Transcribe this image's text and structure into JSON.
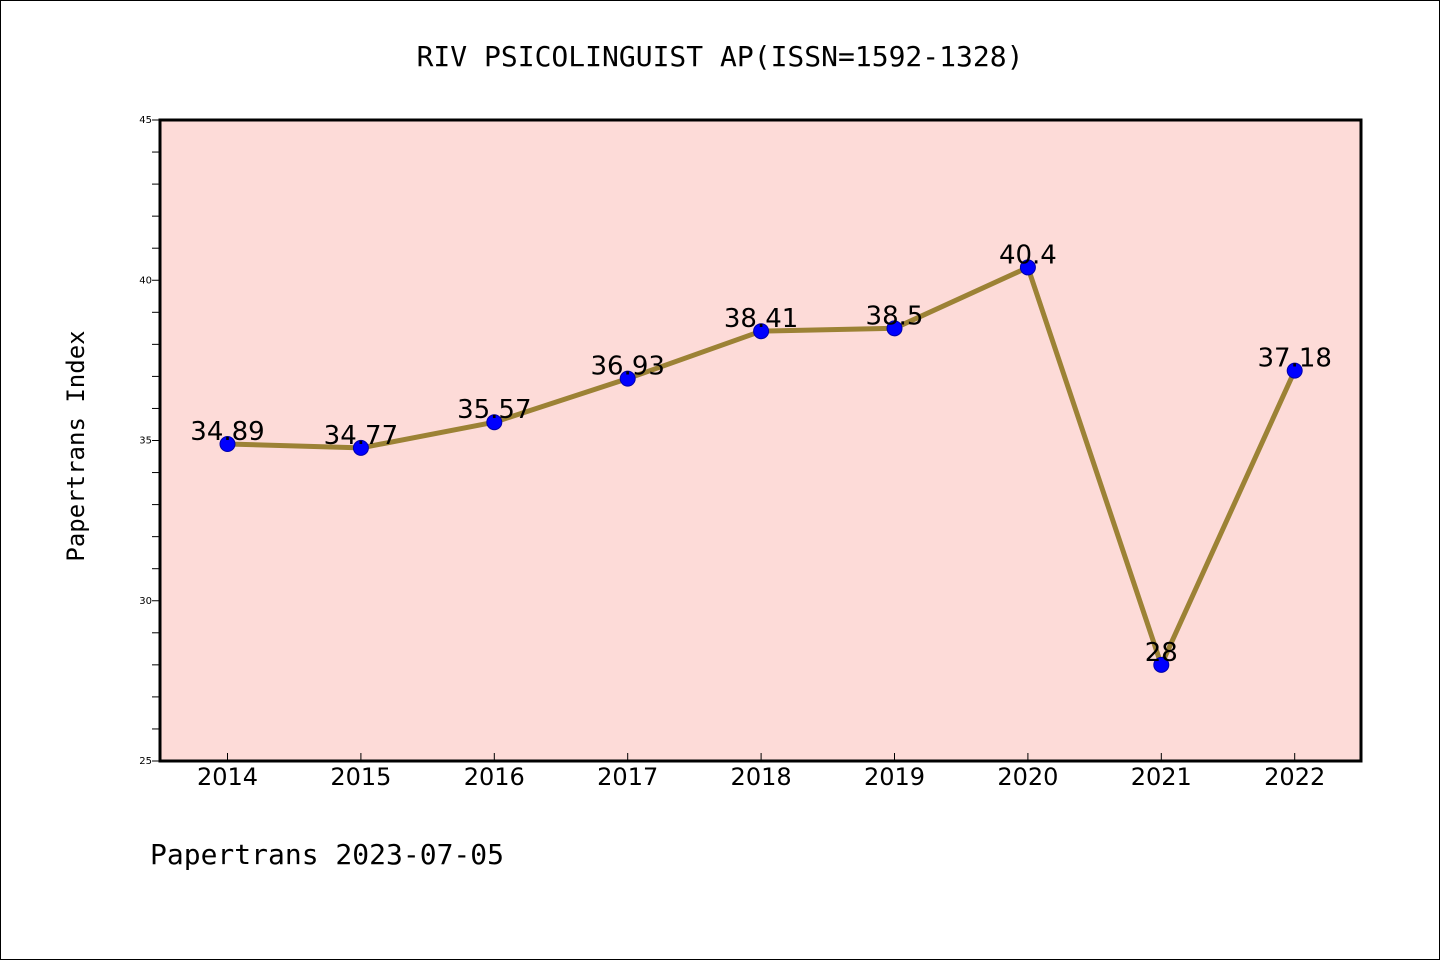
{
  "chart_data": {
    "type": "line",
    "title": "RIV PSICOLINGUIST AP(ISSN=1592-1328)",
    "xlabel": "",
    "ylabel": "Papertrans Index",
    "categories": [
      "2014",
      "2015",
      "2016",
      "2017",
      "2018",
      "2019",
      "2020",
      "2021",
      "2022"
    ],
    "series": [
      {
        "values": [
          34.89,
          34.77,
          35.57,
          36.93,
          38.41,
          38.5,
          40.4,
          28,
          37.18
        ],
        "data_labels": [
          "34.89",
          "34.77",
          "35.57",
          "36.93",
          "38.41",
          "38.5",
          "40.4",
          "28",
          "37.18"
        ]
      }
    ],
    "ylim": [
      25,
      45
    ],
    "yticks": [
      "25",
      "30",
      "35",
      "40",
      "45"
    ],
    "grid": false,
    "line_color": "#9c8235",
    "marker_color": "#0000ff",
    "plot_background": "#fddbd8"
  },
  "footer": "Papertrans 2023-07-05"
}
